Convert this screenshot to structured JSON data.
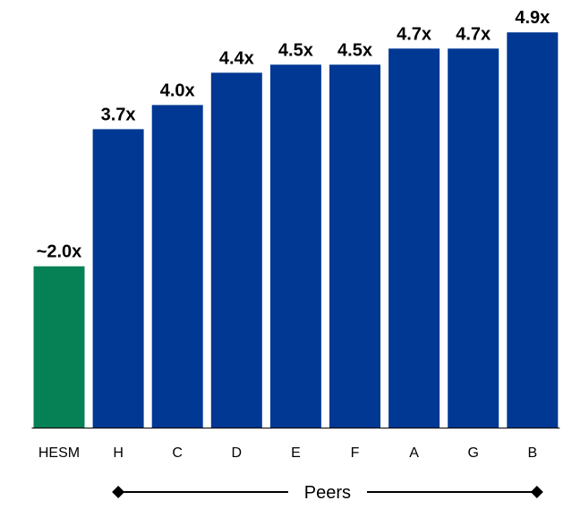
{
  "chart_data": {
    "type": "bar",
    "categories": [
      "HESM",
      "H",
      "C",
      "D",
      "E",
      "F",
      "A",
      "G",
      "B"
    ],
    "values": [
      2.0,
      3.7,
      4.0,
      4.4,
      4.5,
      4.5,
      4.7,
      4.7,
      4.9
    ],
    "data_labels": [
      "~2.0x",
      "3.7x",
      "4.0x",
      "4.4x",
      "4.5x",
      "4.5x",
      "4.7x",
      "4.7x",
      "4.9x"
    ],
    "colors": [
      "#068055",
      "#003893",
      "#003893",
      "#003893",
      "#003893",
      "#003893",
      "#003893",
      "#003893",
      "#003893"
    ],
    "ylim": [
      0,
      5.08
    ],
    "grid": false,
    "legend": "none",
    "title": "",
    "xlabel": "",
    "ylabel": "",
    "group_bracket": {
      "label": "Peers",
      "from_category": "H",
      "to_category": "B"
    }
  }
}
